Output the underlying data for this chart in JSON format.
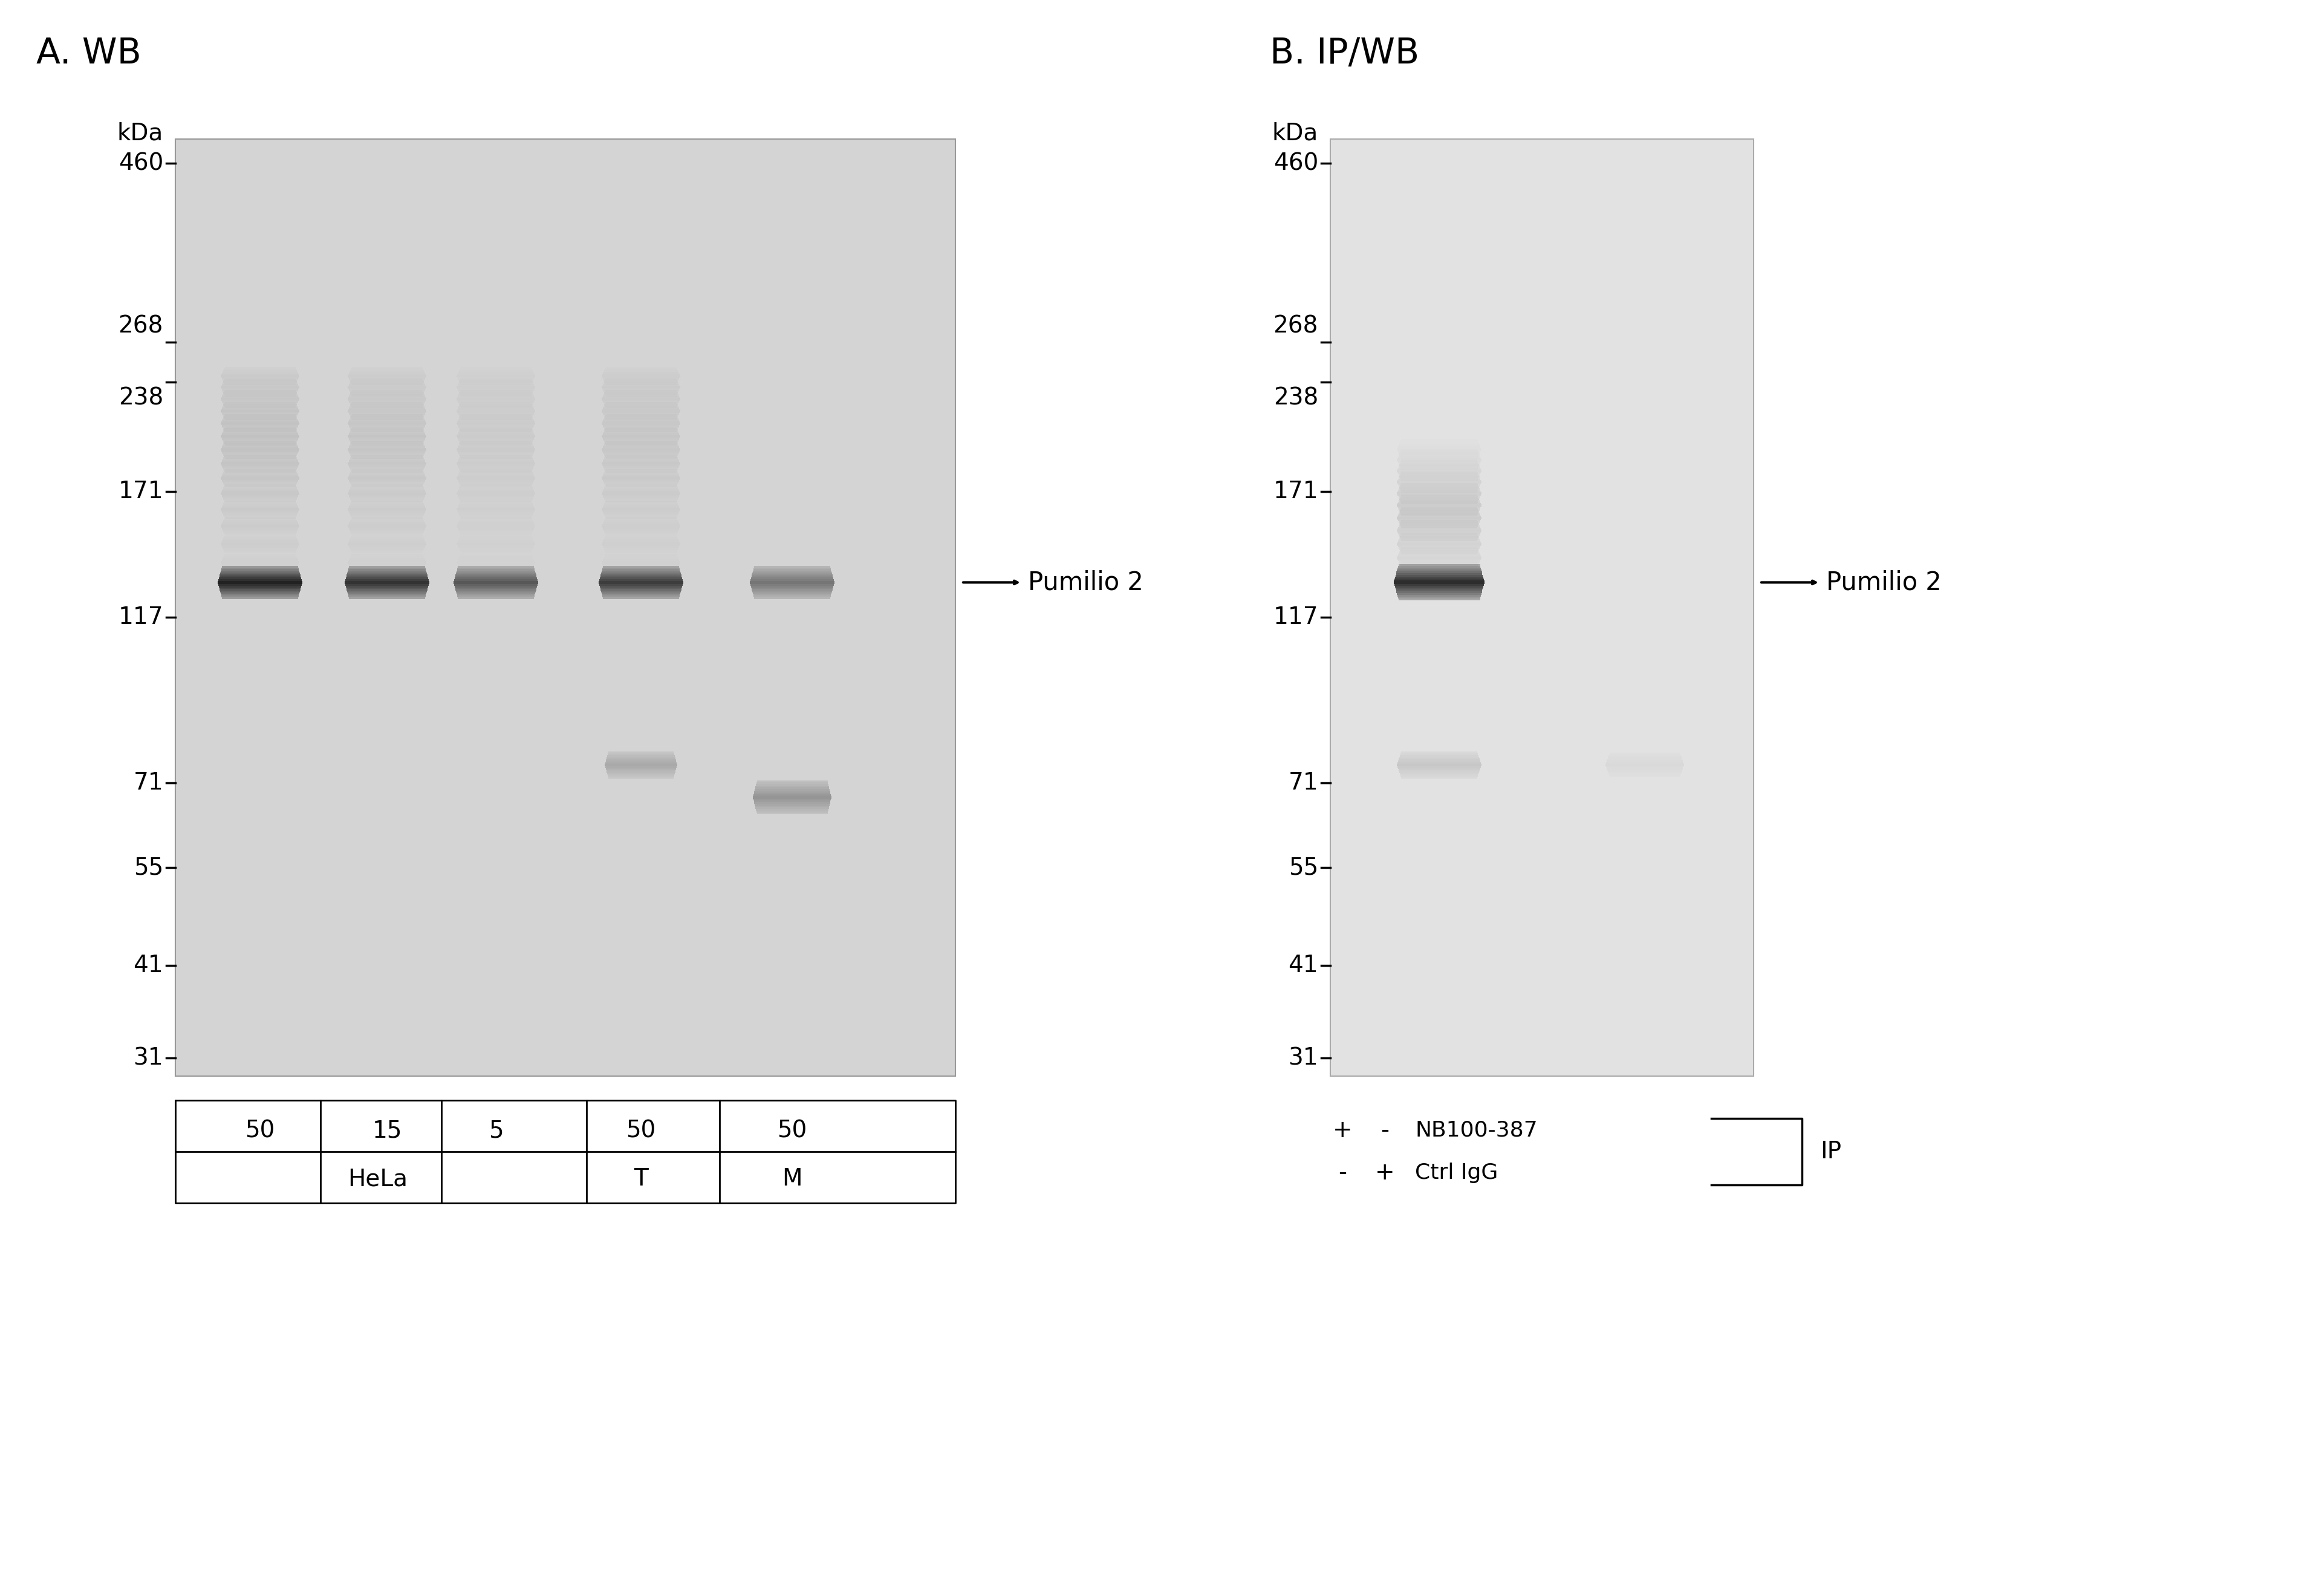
{
  "bg_color": "#ffffff",
  "panel_A_label": "A. WB",
  "panel_B_label": "B. IP/WB",
  "kda_label": "kDa",
  "mw_markers_A": [
    460,
    268,
    238,
    171,
    117,
    71,
    55,
    41,
    31
  ],
  "mw_markers_B": [
    460,
    268,
    238,
    171,
    117,
    71,
    55,
    41,
    31
  ],
  "pumilio2_label": "Pumilio 2",
  "panel_A_gel_color": "#d8d8d8",
  "panel_B_gel_color": "#e0e0e0",
  "lane_labels_A": [
    "50",
    "15",
    "5",
    "50",
    "50"
  ],
  "sample_labels_A_row1": "HeLa",
  "sample_labels_A_row2_cols": [
    "T",
    "M"
  ],
  "nb_label": "NB100-387",
  "ctrl_label": "Ctrl IgG",
  "ip_label": "IP",
  "plus_minus_col1": [
    "+",
    "-"
  ],
  "plus_minus_col2": [
    "-",
    "+"
  ]
}
